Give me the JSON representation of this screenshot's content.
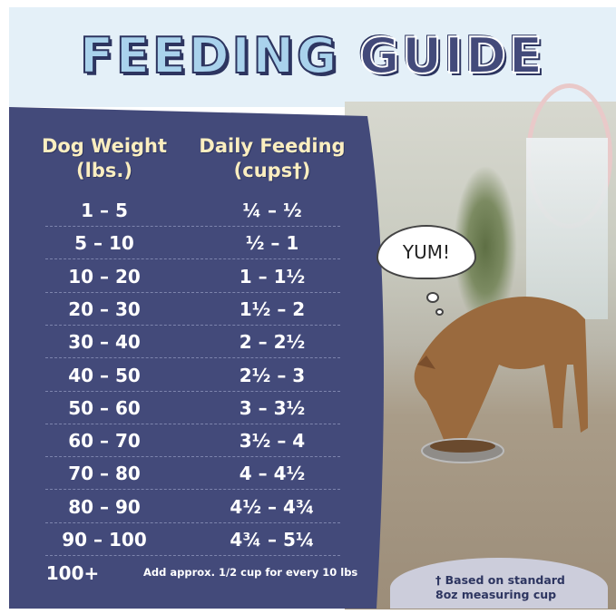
{
  "title": {
    "part1": "FEEDING",
    "part2": "GUIDE"
  },
  "table": {
    "header_weight": [
      "Dog Weight",
      "(lbs.)"
    ],
    "header_feeding": [
      "Daily Feeding",
      "(cups†)"
    ],
    "rows": [
      {
        "weight": "1 – 5",
        "cups": "¼ – ½"
      },
      {
        "weight": "5 – 10",
        "cups": "½ – 1"
      },
      {
        "weight": "10 – 20",
        "cups": "1 – 1½"
      },
      {
        "weight": "20 – 30",
        "cups": "1½ – 2"
      },
      {
        "weight": "30 – 40",
        "cups": "2 – 2½"
      },
      {
        "weight": "40 – 50",
        "cups": "2½ – 3"
      },
      {
        "weight": "50 – 60",
        "cups": "3 – 3½"
      },
      {
        "weight": "60 – 70",
        "cups": "3½ – 4"
      },
      {
        "weight": "70 – 80",
        "cups": "4 – 4½"
      },
      {
        "weight": "80 – 90",
        "cups": "4½ – 4¾"
      },
      {
        "weight": "90 – 100",
        "cups": "4¾ – 5¼"
      }
    ],
    "last_row": {
      "weight": "100+",
      "note": "Add approx. 1/2 cup for every 10 lbs"
    }
  },
  "bubble_text": "YUM!",
  "footnote": [
    "† Based on standard",
    "8oz measuring cup"
  ],
  "colors": {
    "navy": "#434a7a",
    "light_blue": "#a9d2ec",
    "header_bg": "#e4f0f8",
    "cream": "#fbeec0"
  }
}
